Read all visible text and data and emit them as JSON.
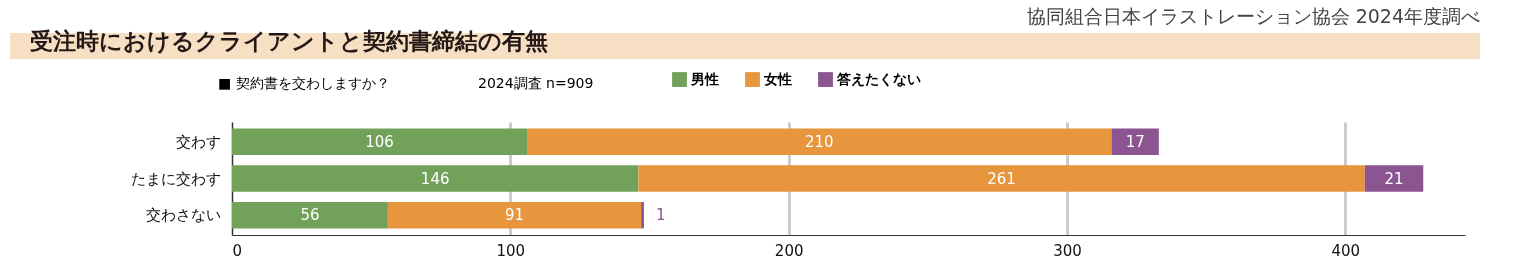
{
  "chart_data": {
    "type": "bar",
    "orientation": "horizontal",
    "stacked": true,
    "title": "受注時におけるクライアントと契約書締結の有無",
    "subtitle": "■ 契約書を交わしますか？",
    "annotations": [
      "2024調査 n=909",
      "協同組合日本イラストレーション協会 2024年度調べ"
    ],
    "categories": [
      "交わす",
      "たまに交わす",
      "交わさない"
    ],
    "series": [
      {
        "name": "男性",
        "color": "#72a15a",
        "values": [
          106,
          146,
          56
        ]
      },
      {
        "name": "女性",
        "color": "#e8963e",
        "values": [
          210,
          261,
          91
        ]
      },
      {
        "name": "答えたくない",
        "color": "#8a5590",
        "values": [
          17,
          21,
          1
        ]
      }
    ],
    "xlim": [
      0,
      443
    ],
    "xticks": [
      0,
      100,
      200,
      300,
      400
    ],
    "grid": "x",
    "legend": "top",
    "data_labels": true
  }
}
